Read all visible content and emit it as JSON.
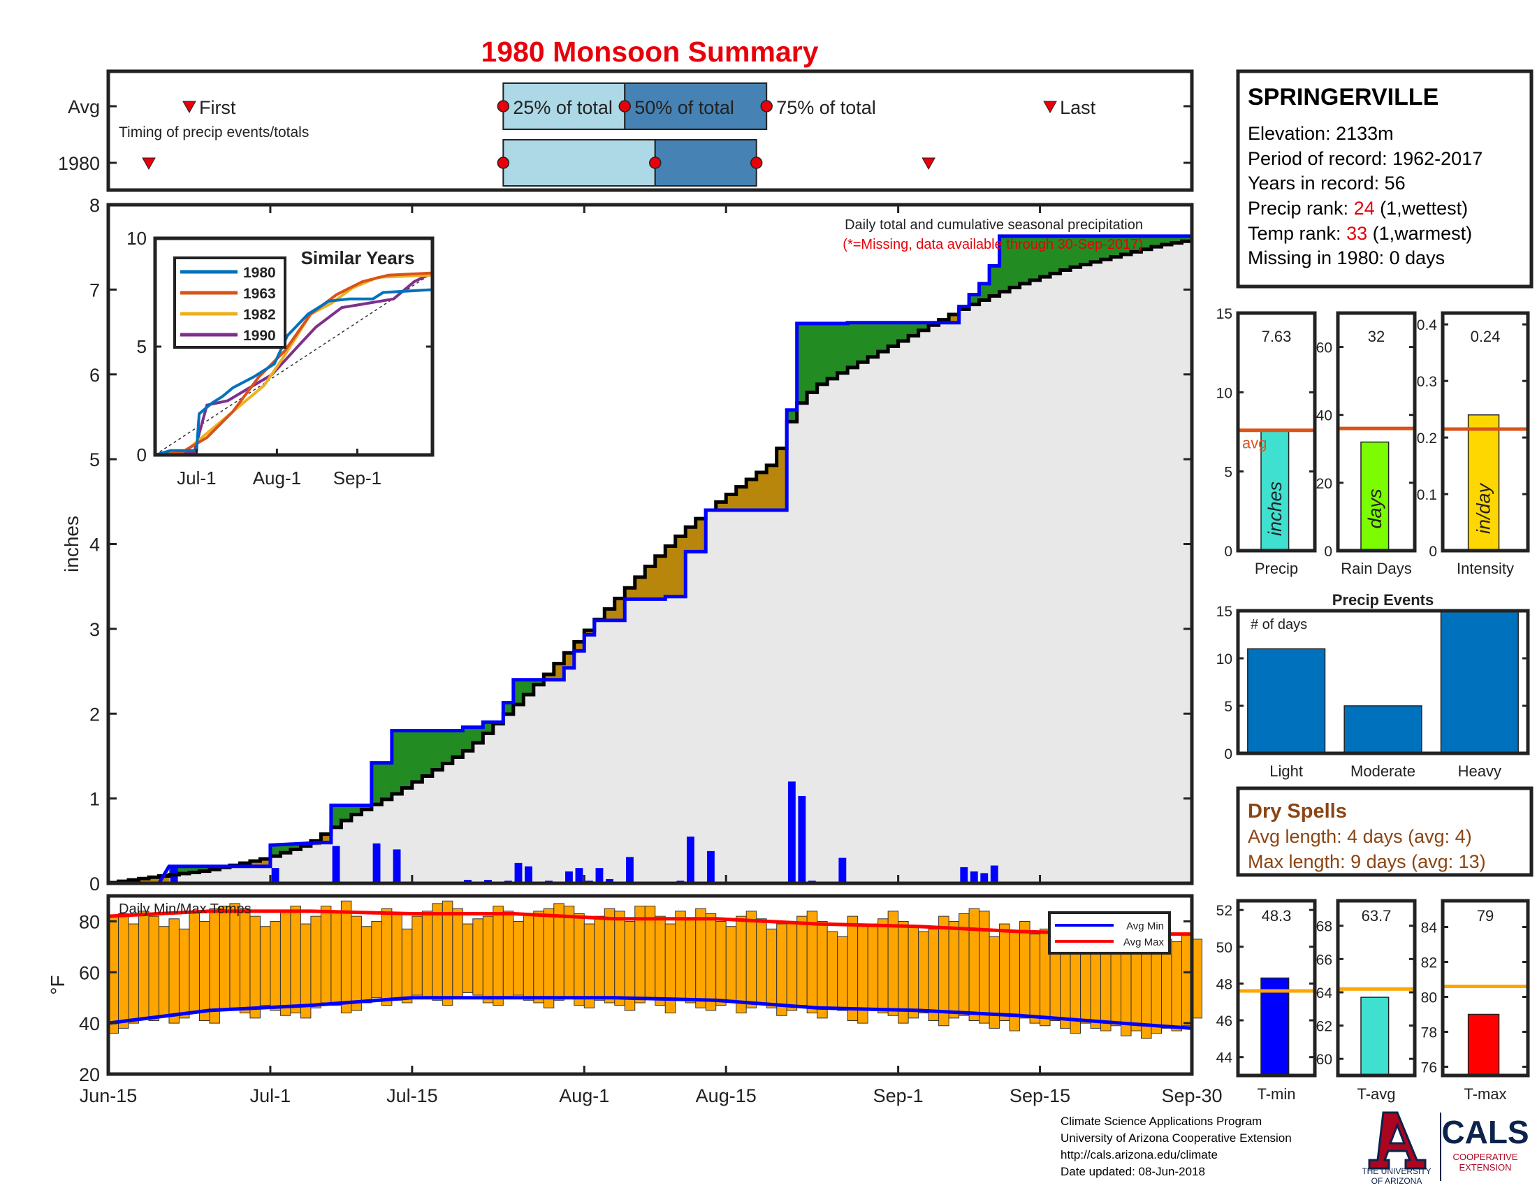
{
  "title": "1980 Monsoon Summary",
  "station": {
    "name": "SPRINGERVILLE",
    "elevation_label": "Elevation: 2133m",
    "period_label": "Period of record: 1962-2017",
    "years_label": "Years in record: 56",
    "precip_rank_prefix": "Precip rank: ",
    "precip_rank_value": "24",
    "precip_rank_suffix": " (1,wettest)",
    "temp_rank_prefix": "Temp rank: ",
    "temp_rank_value": "33",
    "temp_rank_suffix": " (1,warmest)",
    "missing_label": "Missing in 1980: 0 days"
  },
  "timing": {
    "row_avg_label": "Avg",
    "row_year_label": "1980",
    "first_label": "First",
    "last_label": "Last",
    "q25_label": "25% of total",
    "q50_label": "50% of total",
    "q75_label": "75% of total",
    "caption": "Timing of precip events/totals",
    "avg": {
      "first": 8,
      "q25": 39,
      "q50": 51,
      "q75": 65,
      "last": 93
    },
    "year": {
      "first": 4,
      "q25": 39,
      "q50": 54,
      "q75": 64,
      "last": 81
    }
  },
  "chart_data": [
    {
      "type": "line",
      "name": "cumulative_precip",
      "ylabel": "inches",
      "ylim": [
        0,
        8
      ],
      "xlim_day": [
        0,
        107
      ],
      "yticks": [
        0,
        1,
        2,
        3,
        4,
        5,
        6,
        7,
        8
      ],
      "xticks": [
        {
          "day": 0,
          "label": "Jun-15"
        },
        {
          "day": 16,
          "label": "Jul-1"
        },
        {
          "day": 30,
          "label": "Jul-15"
        },
        {
          "day": 47,
          "label": "Aug-1"
        },
        {
          "day": 61,
          "label": "Aug-15"
        },
        {
          "day": 78,
          "label": "Sep-1"
        },
        {
          "day": 92,
          "label": "Sep-15"
        },
        {
          "day": 107,
          "label": "Sep-30"
        }
      ],
      "annotation_title": "Daily total and cumulative seasonal precipitation",
      "annotation_missing": "(*=Missing, data available through 30-Sep-2017)",
      "year_cumulative": [
        [
          0,
          0
        ],
        [
          5,
          0
        ],
        [
          6,
          0.2
        ],
        [
          16,
          0.2
        ],
        [
          16,
          0.45
        ],
        [
          21,
          0.48
        ],
        [
          22,
          0.48
        ],
        [
          22,
          0.92
        ],
        [
          26,
          0.92
        ],
        [
          26,
          1.42
        ],
        [
          28,
          1.42
        ],
        [
          28,
          1.8
        ],
        [
          35,
          1.8
        ],
        [
          35,
          1.84
        ],
        [
          37,
          1.84
        ],
        [
          37,
          1.9
        ],
        [
          39,
          1.9
        ],
        [
          39,
          2.13
        ],
        [
          40,
          2.13
        ],
        [
          40,
          2.4
        ],
        [
          45,
          2.4
        ],
        [
          45,
          2.54
        ],
        [
          46,
          2.54
        ],
        [
          46,
          2.74
        ],
        [
          47,
          2.74
        ],
        [
          47,
          2.93
        ],
        [
          48,
          2.93
        ],
        [
          48,
          3.1
        ],
        [
          51,
          3.1
        ],
        [
          51,
          3.35
        ],
        [
          55,
          3.35
        ],
        [
          55,
          3.38
        ],
        [
          57,
          3.38
        ],
        [
          57,
          3.91
        ],
        [
          59,
          3.91
        ],
        [
          59,
          4.4
        ],
        [
          67,
          4.4
        ],
        [
          67,
          5.58
        ],
        [
          68,
          5.58
        ],
        [
          68,
          6.6
        ],
        [
          73,
          6.6
        ],
        [
          73,
          6.61
        ],
        [
          84,
          6.61
        ],
        [
          84,
          6.8
        ],
        [
          85,
          6.8
        ],
        [
          85,
          6.94
        ],
        [
          86,
          6.94
        ],
        [
          86,
          7.07
        ],
        [
          87,
          7.07
        ],
        [
          87,
          7.28
        ],
        [
          88,
          7.28
        ],
        [
          88,
          7.63
        ],
        [
          107,
          7.63
        ]
      ],
      "average_cumulative": [
        [
          0,
          0
        ],
        [
          5,
          0.08
        ],
        [
          10,
          0.15
        ],
        [
          16,
          0.3
        ],
        [
          20,
          0.46
        ],
        [
          24,
          0.78
        ],
        [
          28,
          1.02
        ],
        [
          32,
          1.3
        ],
        [
          36,
          1.6
        ],
        [
          40,
          2.05
        ],
        [
          43,
          2.4
        ],
        [
          46,
          2.78
        ],
        [
          48,
          3.05
        ],
        [
          51,
          3.42
        ],
        [
          54,
          3.8
        ],
        [
          57,
          4.15
        ],
        [
          60,
          4.45
        ],
        [
          63,
          4.72
        ],
        [
          66,
          4.97
        ],
        [
          68,
          5.6
        ],
        [
          70,
          5.85
        ],
        [
          73,
          6.05
        ],
        [
          77,
          6.3
        ],
        [
          81,
          6.55
        ],
        [
          85,
          6.8
        ],
        [
          90,
          7.05
        ],
        [
          95,
          7.25
        ],
        [
          100,
          7.4
        ],
        [
          104,
          7.52
        ],
        [
          107,
          7.58
        ]
      ],
      "daily_precip": [
        [
          6,
          0.2
        ],
        [
          16,
          0.18
        ],
        [
          17,
          0.02
        ],
        [
          22,
          0.44
        ],
        [
          26,
          0.47
        ],
        [
          28,
          0.4
        ],
        [
          35,
          0.04
        ],
        [
          37,
          0.04
        ],
        [
          39,
          0.03
        ],
        [
          40,
          0.24
        ],
        [
          41,
          0.2
        ],
        [
          43,
          0.03
        ],
        [
          45,
          0.14
        ],
        [
          46,
          0.18
        ],
        [
          47,
          0.03
        ],
        [
          48,
          0.18
        ],
        [
          49,
          0.05
        ],
        [
          51,
          0.31
        ],
        [
          56,
          0.03
        ],
        [
          57,
          0.55
        ],
        [
          59,
          0.38
        ],
        [
          67,
          1.2
        ],
        [
          68,
          1.03
        ],
        [
          69,
          0.03
        ],
        [
          72,
          0.3
        ],
        [
          73,
          0.01
        ],
        [
          84,
          0.19
        ],
        [
          85,
          0.14
        ],
        [
          86,
          0.12
        ],
        [
          87,
          0.21
        ]
      ]
    },
    {
      "type": "line",
      "name": "similar_years",
      "title": "Similar Years",
      "ylim": [
        0,
        10
      ],
      "yticks": [
        0,
        5,
        10
      ],
      "xticks": [
        {
          "day": 16,
          "label": "Jul-1"
        },
        {
          "day": 47,
          "label": "Aug-1"
        },
        {
          "day": 78,
          "label": "Sep-1"
        }
      ],
      "series": [
        {
          "name": "1980",
          "color": "#0072BD",
          "values": [
            [
              0,
              0
            ],
            [
              6,
              0.2
            ],
            [
              16,
              0.2
            ],
            [
              17,
              1.9
            ],
            [
              22,
              2.4
            ],
            [
              26,
              2.7
            ],
            [
              30,
              3.1
            ],
            [
              38,
              3.6
            ],
            [
              46,
              4.2
            ],
            [
              51,
              5.5
            ],
            [
              59,
              6.5
            ],
            [
              67,
              7.1
            ],
            [
              75,
              7.2
            ],
            [
              84,
              7.2
            ],
            [
              88,
              7.5
            ],
            [
              107,
              7.63
            ]
          ]
        },
        {
          "name": "1963",
          "color": "#D95319",
          "values": [
            [
              0,
              0
            ],
            [
              10,
              0.1
            ],
            [
              20,
              0.8
            ],
            [
              30,
              2.0
            ],
            [
              40,
              3.6
            ],
            [
              50,
              4.8
            ],
            [
              60,
              6.5
            ],
            [
              70,
              7.4
            ],
            [
              80,
              8.0
            ],
            [
              90,
              8.3
            ],
            [
              107,
              8.4
            ]
          ]
        },
        {
          "name": "1982",
          "color": "#EDB120",
          "values": [
            [
              0,
              0
            ],
            [
              12,
              0.2
            ],
            [
              22,
              1.2
            ],
            [
              32,
              2.2
            ],
            [
              42,
              3.2
            ],
            [
              50,
              4.6
            ],
            [
              60,
              6.5
            ],
            [
              68,
              7.0
            ],
            [
              76,
              7.7
            ],
            [
              86,
              8.2
            ],
            [
              107,
              8.3
            ]
          ]
        },
        {
          "name": "1990",
          "color": "#7E2F8E",
          "values": [
            [
              0,
              0
            ],
            [
              15,
              0.1
            ],
            [
              20,
              2.3
            ],
            [
              28,
              2.5
            ],
            [
              35,
              3.0
            ],
            [
              45,
              3.7
            ],
            [
              55,
              5.0
            ],
            [
              62,
              5.9
            ],
            [
              72,
              6.8
            ],
            [
              82,
              7.0
            ],
            [
              92,
              7.2
            ],
            [
              100,
              8.0
            ],
            [
              107,
              8.4
            ]
          ]
        }
      ],
      "average": [
        [
          0,
          0
        ],
        [
          107,
          8.4
        ]
      ]
    },
    {
      "type": "bar",
      "name": "season_totals",
      "items": [
        {
          "label": "Precip",
          "unit": "inches",
          "value": 7.63,
          "value_label": "7.63",
          "avg": 7.6,
          "avg_label": "avg",
          "ylim": [
            0,
            15
          ],
          "yticks": [
            0,
            5,
            10,
            15
          ],
          "color": "#40E0D0"
        },
        {
          "label": "Rain Days",
          "unit": "days",
          "value": 32,
          "value_label": "32",
          "avg": 36,
          "ylim": [
            0,
            70
          ],
          "yticks": [
            0,
            20,
            40,
            60
          ],
          "color": "#7CFC00"
        },
        {
          "label": "Intensity",
          "unit": "in/day",
          "value": 0.24,
          "value_label": "0.24",
          "avg": 0.215,
          "ylim": [
            0,
            0.42
          ],
          "yticks": [
            0,
            0.1,
            0.2,
            0.3,
            0.4
          ],
          "color": "#FFD700"
        }
      ]
    },
    {
      "type": "bar",
      "name": "precip_events",
      "title": "Precip Events",
      "ylabel": "# of days",
      "ylim": [
        0,
        15
      ],
      "yticks": [
        0,
        5,
        10,
        15
      ],
      "categories": [
        "Light",
        "Moderate",
        "Heavy"
      ],
      "values": [
        11,
        5,
        15
      ]
    },
    {
      "type": "bar",
      "name": "daily_temps",
      "title": "Daily Min/Max Temps",
      "ylabel": "°F",
      "ylim": [
        20,
        90
      ],
      "yticks": [
        20,
        40,
        60,
        80
      ],
      "legend": [
        "Avg Min",
        "Avg Max"
      ],
      "avg_min": [
        [
          0,
          40
        ],
        [
          10,
          45
        ],
        [
          20,
          47
        ],
        [
          30,
          50
        ],
        [
          40,
          50
        ],
        [
          50,
          50
        ],
        [
          60,
          49
        ],
        [
          70,
          46
        ],
        [
          80,
          45
        ],
        [
          90,
          43
        ],
        [
          100,
          40
        ],
        [
          107,
          38
        ]
      ],
      "avg_max": [
        [
          0,
          82
        ],
        [
          10,
          84
        ],
        [
          20,
          84
        ],
        [
          30,
          83
        ],
        [
          40,
          83
        ],
        [
          50,
          81
        ],
        [
          60,
          81
        ],
        [
          70,
          79
        ],
        [
          80,
          78
        ],
        [
          90,
          76
        ],
        [
          100,
          75
        ],
        [
          107,
          75
        ]
      ],
      "daily_max": [
        82,
        83,
        79,
        84,
        82,
        78,
        81,
        77,
        84,
        80,
        85,
        86,
        87,
        85,
        82,
        78,
        80,
        84,
        86,
        79,
        82,
        86,
        84,
        88,
        82,
        78,
        80,
        85,
        83,
        77,
        82,
        84,
        87,
        88,
        85,
        79,
        81,
        82,
        86,
        84,
        80,
        83,
        84,
        85,
        87,
        86,
        83,
        79,
        82,
        85,
        84,
        80,
        86,
        86,
        82,
        79,
        84,
        81,
        85,
        83,
        80,
        78,
        82,
        84,
        81,
        77,
        79,
        80,
        82,
        84,
        80,
        76,
        74,
        82,
        78,
        79,
        81,
        84,
        80,
        78,
        76,
        77,
        82,
        80,
        83,
        85,
        84,
        74,
        79,
        76,
        80,
        75,
        77,
        74,
        76,
        80,
        76,
        77,
        73,
        76,
        74,
        76,
        72,
        71,
        73,
        72,
        75,
        73
      ],
      "daily_min": [
        36,
        38,
        40,
        42,
        41,
        43,
        40,
        42,
        44,
        41,
        40,
        45,
        46,
        44,
        42,
        47,
        45,
        43,
        44,
        42,
        46,
        48,
        47,
        44,
        45,
        48,
        50,
        47,
        49,
        48,
        51,
        50,
        49,
        47,
        50,
        52,
        51,
        48,
        47,
        50,
        51,
        49,
        48,
        46,
        49,
        50,
        47,
        46,
        49,
        48,
        47,
        45,
        48,
        50,
        47,
        44,
        49,
        48,
        46,
        45,
        47,
        49,
        44,
        46,
        48,
        46,
        43,
        45,
        47,
        44,
        42,
        46,
        45,
        41,
        40,
        45,
        44,
        43,
        40,
        42,
        44,
        41,
        39,
        42,
        43,
        41,
        40,
        38,
        41,
        37,
        42,
        40,
        39,
        41,
        38,
        36,
        40,
        38,
        37,
        39,
        35,
        37,
        34,
        36,
        38,
        37,
        39,
        42
      ]
    },
    {
      "type": "bar",
      "name": "temp_summary",
      "items": [
        {
          "label": "T-min",
          "value": 48.3,
          "value_label": "48.3",
          "avg": 47.6,
          "ylim": [
            43,
            52.5
          ],
          "yticks": [
            44,
            46,
            48,
            50,
            52
          ],
          "color": "#0000FF"
        },
        {
          "label": "T-avg",
          "value": 63.7,
          "value_label": "63.7",
          "avg": 64.2,
          "ylim": [
            59,
            69.5
          ],
          "yticks": [
            60,
            62,
            64,
            66,
            68
          ],
          "color": "#40E0D0"
        },
        {
          "label": "T-max",
          "value": 79,
          "value_label": "79",
          "avg": 80.6,
          "ylim": [
            75.5,
            85.5
          ],
          "yticks": [
            76,
            78,
            80,
            82,
            84
          ],
          "color": "#FF0000"
        }
      ]
    }
  ],
  "dry_spells": {
    "title": "Dry Spells",
    "avg_label": "Avg length: 4 days (avg: 4)",
    "max_label": "Max length: 9 days (avg: 13)"
  },
  "footer": {
    "line1": "Climate Science Applications Program",
    "line2": "University of Arizona Cooperative Extension",
    "line3": "http://cals.arizona.edu/climate",
    "line4": " Date updated: 08-Jun-2018"
  },
  "logos": {
    "ua_line1": "THE UNIVERSITY",
    "ua_line2": "OF ARIZONA",
    "cals_text": "CALS",
    "cals_sub1": "COOPERATIVE",
    "cals_sub2": "EXTENSION"
  },
  "colors": {
    "title": "#E8000B",
    "year_line": "#0000FF",
    "avg_line": "#000000",
    "above_fill": "#228B22",
    "below_fill": "#B8860B",
    "base_fill": "#E8E8E8",
    "daily_bar": "#0000FF",
    "temp_bar": "#FFA500",
    "avg_marker": "#D95319",
    "temp_avg_marker": "#FFA500",
    "event_bar": "#0072BD",
    "rank_red": "#E8000B",
    "dry_brown": "#8B4513"
  }
}
